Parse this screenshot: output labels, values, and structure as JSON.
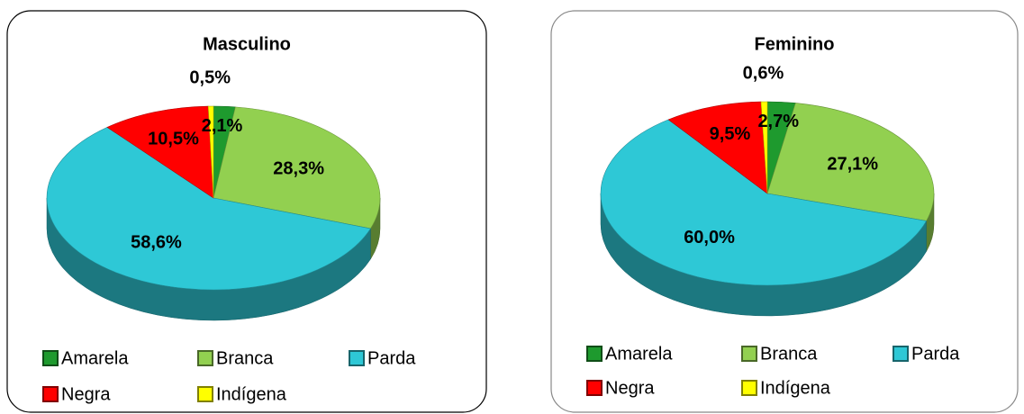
{
  "chart_data": [
    {
      "type": "pie",
      "title": "Masculino",
      "categories": [
        "Amarela",
        "Branca",
        "Parda",
        "Negra",
        "Indígena"
      ],
      "values": [
        2.1,
        28.3,
        58.6,
        10.5,
        0.5
      ],
      "value_labels": [
        "2,1%",
        "28,3%",
        "58,6%",
        "10,5%",
        "0,5%"
      ],
      "colors": [
        "#1e9a2e",
        "#92d050",
        "#2ec8d6",
        "#ff0000",
        "#ffff00"
      ]
    },
    {
      "type": "pie",
      "title": "Feminino",
      "categories": [
        "Amarela",
        "Branca",
        "Parda",
        "Negra",
        "Indígena"
      ],
      "values": [
        2.7,
        27.1,
        60.0,
        9.5,
        0.6
      ],
      "value_labels": [
        "2,7%",
        "27,1%",
        "60,0%",
        "9,5%",
        "0,6%"
      ],
      "colors": [
        "#1e9a2e",
        "#92d050",
        "#2ec8d6",
        "#ff0000",
        "#ffff00"
      ]
    }
  ]
}
